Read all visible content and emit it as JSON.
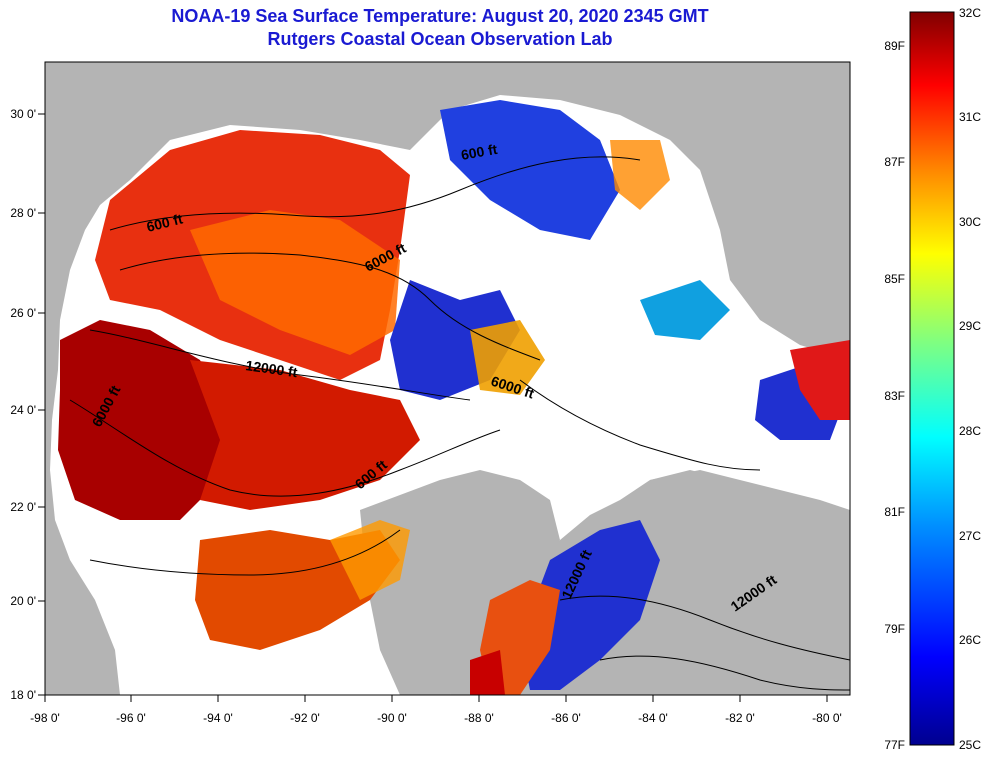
{
  "header": {
    "title_line1": "NOAA-19 Sea Surface Temperature:  August 20, 2020 2345 GMT",
    "title_line2": "Rutgers Coastal Ocean Observation Lab"
  },
  "map": {
    "longitude_ticks": [
      "-98 0'",
      "-96 0'",
      "-94 0'",
      "-92 0'",
      "-90 0'",
      "-88 0'",
      "-86 0'",
      "-84 0'",
      "-82 0'",
      "-80 0'"
    ],
    "latitude_ticks": [
      "30 0'",
      "28 0'",
      "26 0'",
      "24 0'",
      "22 0'",
      "20 0'",
      "18 0'"
    ],
    "contour_labels": [
      "600 ft",
      "600 ft",
      "6000 ft",
      "12000 ft",
      "6000 ft",
      "6000 ft",
      "600 ft",
      "12000 ft",
      "12000 ft"
    ],
    "colors": {
      "land": "#b4b4b4",
      "ocean_no_data": "#ffffff",
      "warm_core": "#8b0000"
    }
  },
  "colorbar": {
    "fahrenheit_labels": [
      "89F",
      "87F",
      "85F",
      "83F",
      "81F",
      "79F",
      "77F"
    ],
    "celsius_labels": [
      "32C",
      "31C",
      "30C",
      "29C",
      "28C",
      "27C",
      "26C",
      "25C"
    ]
  }
}
